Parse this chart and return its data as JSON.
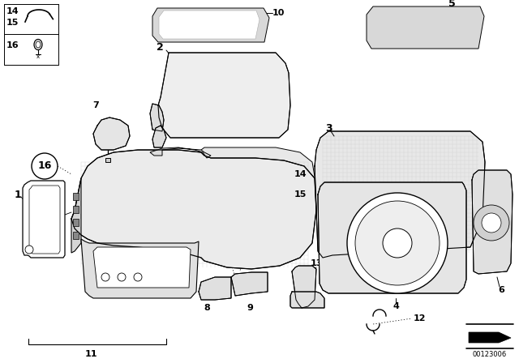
{
  "background_color": "#ffffff",
  "diagram_color": "#000000",
  "diagram_id": "00123006",
  "fig_width": 6.4,
  "fig_height": 4.48,
  "dpi": 100,
  "hatch_color": "#888888",
  "light_gray": "#d8d8d8",
  "mid_gray": "#aaaaaa"
}
